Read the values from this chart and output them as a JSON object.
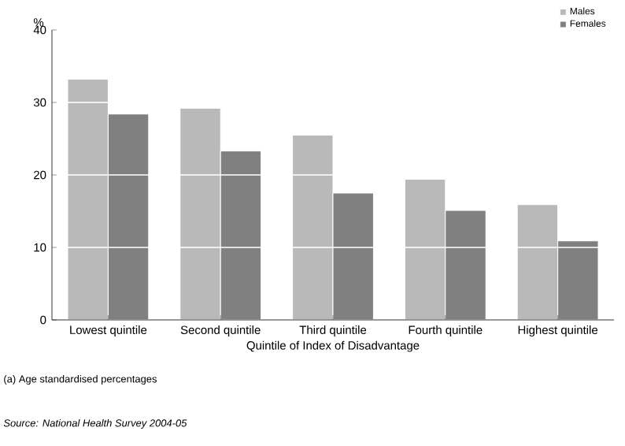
{
  "chart_data": {
    "type": "bar",
    "xlabel": "Quintile of Index of Disadvantage",
    "ylabel": "%",
    "categories": [
      "Lowest quintile",
      "Second quintile",
      "Third quintile",
      "Fourth quintile",
      "Highest quintile"
    ],
    "series": [
      {
        "name": "Males",
        "color": "#b9b9b9",
        "values": [
          33.2,
          29.2,
          25.5,
          19.4,
          15.9
        ]
      },
      {
        "name": "Females",
        "color": "#808080",
        "values": [
          28.4,
          23.3,
          17.5,
          15.1,
          10.9
        ]
      }
    ],
    "ylim": [
      0,
      40
    ],
    "yticks": [
      0,
      10,
      20,
      30,
      40
    ],
    "grid": "y",
    "legend": "top right",
    "annotations": [
      "(a) Age standardised percentages",
      "Source: National Health Survey 2004-05"
    ]
  }
}
